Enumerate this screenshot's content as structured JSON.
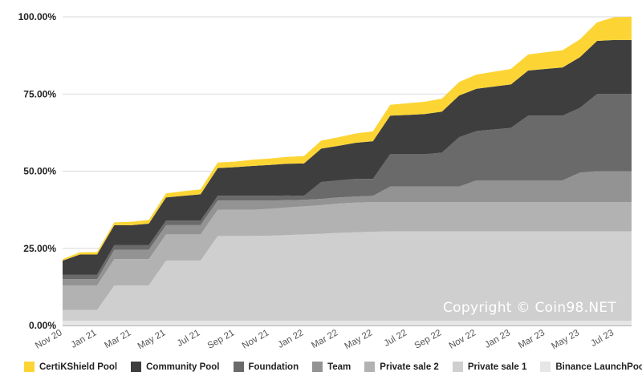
{
  "chart_data": {
    "type": "area",
    "stacked": true,
    "x": [
      "Nov 20",
      "Dec 20",
      "Jan 21",
      "Feb 21",
      "Mar 21",
      "Apr 21",
      "May 21",
      "Jun 21",
      "Jul 21",
      "Aug 21",
      "Sep 21",
      "Oct 21",
      "Nov 21",
      "Dec 21",
      "Jan 22",
      "Feb 22",
      "Mar 22",
      "Apr 22",
      "May 22",
      "Jun 22",
      "Jul 22",
      "Aug 22",
      "Sep 22",
      "Oct 22",
      "Nov 22",
      "Dec 22",
      "Jan 23",
      "Feb 23",
      "Mar 23",
      "Apr 23",
      "May 23",
      "Jun 23",
      "Jul 23",
      "Aug 23"
    ],
    "x_tick_labels": [
      "Nov 20",
      "Jan 21",
      "Mar 21",
      "May 21",
      "Jul 21",
      "Sep 21",
      "Nov 21",
      "Jan 22",
      "Mar 22",
      "May 22",
      "Jul 22",
      "Sep 22",
      "Nov 22",
      "Jan 23",
      "Mar 23",
      "May 23",
      "Jul 23"
    ],
    "y_tick_labels": [
      "0.00%",
      "25.00%",
      "50.00%",
      "75.00%",
      "100.00%"
    ],
    "ylim": [
      0,
      100
    ],
    "series": [
      {
        "name": "Binance LaunchPool",
        "color": "#e6e6e6",
        "values": [
          1.5,
          1.5,
          1.5,
          1.5,
          1.5,
          1.5,
          1.5,
          1.5,
          1.5,
          1.5,
          1.5,
          1.5,
          1.5,
          1.5,
          1.5,
          1.5,
          1.5,
          1.5,
          1.5,
          1.5,
          1.5,
          1.5,
          1.5,
          1.5,
          1.5,
          1.5,
          1.5,
          1.5,
          1.5,
          1.5,
          1.5,
          1.5,
          1.5,
          1.5
        ]
      },
      {
        "name": "Private sale 1",
        "color": "#cfcfcf",
        "values": [
          3.5,
          3.5,
          3.5,
          11.5,
          11.5,
          11.5,
          19.5,
          19.5,
          19.5,
          27.5,
          27.5,
          27.5,
          27.6,
          27.8,
          28.0,
          28.2,
          28.5,
          28.7,
          28.9,
          29.0,
          29.0,
          29.0,
          29.0,
          29.0,
          29.0,
          29.0,
          29.0,
          29.0,
          29.0,
          29.0,
          29.0,
          29.0,
          29.0,
          29.0
        ]
      },
      {
        "name": "Private sale 2",
        "color": "#b2b2b2",
        "values": [
          8,
          8,
          8,
          8.5,
          8.5,
          8.5,
          8.5,
          8.5,
          8.5,
          8.5,
          8.5,
          8.5,
          8.7,
          8.9,
          9.1,
          9.3,
          9.5,
          9.6,
          9.6,
          9.5,
          9.5,
          9.5,
          9.5,
          9.5,
          9.5,
          9.5,
          9.5,
          9.5,
          9.5,
          9.5,
          9.5,
          9.5,
          9.5,
          9.5
        ]
      },
      {
        "name": "Team",
        "color": "#939393",
        "values": [
          2,
          2,
          2,
          3,
          3,
          3,
          3,
          3,
          3,
          3,
          3,
          3,
          2.7,
          2.4,
          2.1,
          2.0,
          2.0,
          2.0,
          2.0,
          5,
          5,
          5,
          5,
          5,
          7,
          7,
          7,
          7,
          7,
          7,
          9.5,
          10,
          10,
          10
        ]
      },
      {
        "name": "Foundation",
        "color": "#6a6a6a",
        "values": [
          1.5,
          1.5,
          1.5,
          1.5,
          1.5,
          1.5,
          1.5,
          1.5,
          1.5,
          1.5,
          1.5,
          1.5,
          1.5,
          1.5,
          1.3,
          5.5,
          5.5,
          5.7,
          5.5,
          10.5,
          10.5,
          10.5,
          11,
          16,
          16,
          16.5,
          17,
          21,
          21,
          21,
          21,
          25,
          25,
          25
        ]
      },
      {
        "name": "Community Pool",
        "color": "#3e3e3e",
        "values": [
          4.5,
          6.5,
          6.5,
          6.5,
          6.5,
          7,
          7.5,
          8,
          8.5,
          9,
          9.3,
          9.7,
          10,
          10.3,
          10.5,
          10.8,
          11.2,
          11.7,
          12.2,
          12.5,
          12.7,
          13,
          13.3,
          13.5,
          13.7,
          13.9,
          14.1,
          14.6,
          15.1,
          15.6,
          16.4,
          17.2,
          17.5,
          17.5
        ]
      },
      {
        "name": "CertiKShield Pool",
        "color": "#fcd535",
        "values": [
          0.5,
          0.7,
          0.8,
          0.9,
          1.1,
          1.2,
          1.3,
          1.5,
          1.6,
          1.8,
          1.8,
          2,
          2.1,
          2.2,
          2.4,
          2.6,
          2.8,
          3,
          3.2,
          3.5,
          3.8,
          4,
          4.2,
          4.4,
          4.6,
          4.8,
          5,
          5.2,
          5.4,
          5.6,
          5.8,
          6,
          7.4,
          7.5
        ]
      }
    ],
    "legend_order": [
      "CertiKShield Pool",
      "Community Pool",
      "Foundation",
      "Team",
      "Private sale 2",
      "Private sale 1",
      "Binance LaunchPool"
    ],
    "legend_position": "bottom",
    "grid": true,
    "annotation": "Copyright © Coin98.NET"
  }
}
